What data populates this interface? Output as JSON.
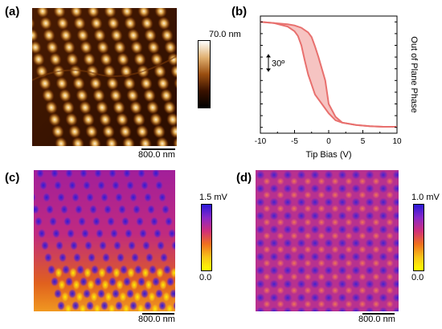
{
  "panels": {
    "a": {
      "label": "(a)",
      "colorbar": {
        "top_label": "70.0 nm",
        "colors": [
          "#ffffff",
          "#e0b070",
          "#9a4e10",
          "#3a1200",
          "#000000"
        ]
      },
      "scalebar": "800.0 nm"
    },
    "b": {
      "label": "(b)"
    },
    "c": {
      "label": "(c)",
      "colorbar": {
        "top_label": "1.5 mV",
        "bottom_label": "0.0",
        "colors": [
          "#2a1ad8",
          "#8a28c8",
          "#d0307a",
          "#f0701e",
          "#f8c418",
          "#ffff00"
        ]
      },
      "scalebar": "800.0 nm"
    },
    "d": {
      "label": "(d)",
      "colorbar": {
        "top_label": "1.0 mV",
        "bottom_label": "0.0",
        "colors": [
          "#2a1ad8",
          "#8a28c8",
          "#d0307a",
          "#f0701e",
          "#f8c418",
          "#ffff00"
        ]
      },
      "scalebar": "800.0 nm"
    }
  },
  "chart_data": {
    "type": "line",
    "xlabel": "Tip Bias (V)",
    "ylabel": "Out of Plane Phase",
    "xlim": [
      -10,
      10
    ],
    "xticks": [
      -10,
      -5,
      0,
      5,
      10
    ],
    "ylim": [
      -90,
      110
    ],
    "annotation": "30º",
    "annotation_span_deg": 30,
    "line_color": "#e8706e",
    "fill_color": "#f6c4c2",
    "series": [
      {
        "x": [
          -10,
          -8,
          -6,
          -5,
          -4,
          -3,
          -2.5,
          -2,
          -1.5,
          -1,
          -0.5,
          0,
          1,
          2,
          4,
          6,
          8,
          10
        ],
        "y": [
          100,
          98,
          96,
          94,
          90,
          82,
          74,
          58,
          40,
          20,
          0,
          -40,
          -62,
          -72,
          -76,
          -78,
          -79,
          -79
        ]
      },
      {
        "x": [
          10,
          8,
          6,
          4,
          2,
          1,
          0,
          -1,
          -2,
          -3,
          -3.5,
          -4,
          -4.5,
          -5,
          -6,
          -8,
          -10
        ],
        "y": [
          -79,
          -79,
          -78,
          -76,
          -72,
          -68,
          -56,
          -40,
          -24,
          10,
          34,
          60,
          76,
          84,
          92,
          98,
          100
        ]
      }
    ]
  }
}
